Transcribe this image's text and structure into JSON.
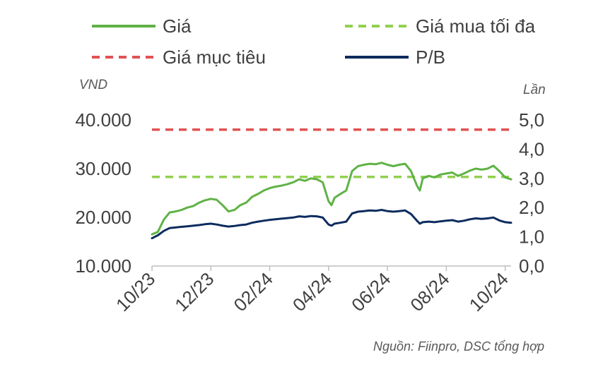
{
  "chart_data": {
    "type": "line",
    "title": "",
    "left_axis": {
      "unit": "VND",
      "ylim": [
        10000,
        40000
      ],
      "ticks": [
        "10.000",
        "20.000",
        "30.000",
        "40.000"
      ],
      "tick_values": [
        10000,
        20000,
        30000,
        40000
      ]
    },
    "right_axis": {
      "unit": "Lần",
      "ylim": [
        0,
        5
      ],
      "ticks": [
        "0,0",
        "1,0",
        "2,0",
        "3,0",
        "4,0",
        "5,0"
      ],
      "tick_values": [
        0,
        1,
        2,
        3,
        4,
        5
      ]
    },
    "x_axis": {
      "tick_labels": [
        "10/23",
        "12/23",
        "02/24",
        "04/24",
        "06/24",
        "08/24",
        "10/24"
      ],
      "tick_months": [
        0,
        2,
        4,
        6,
        8,
        10,
        12
      ],
      "range_months": [
        0,
        12.2
      ]
    },
    "legend": {
      "placement": "top",
      "items": [
        {
          "key": "price",
          "label": "Giá",
          "color": "#5fb246",
          "style": "solid"
        },
        {
          "key": "max_buy",
          "label": "Giá mua tối đa",
          "color": "#92d050",
          "style": "dashed"
        },
        {
          "key": "target",
          "label": "Giá mục tiêu",
          "color": "#e05252",
          "style": "dashed"
        },
        {
          "key": "pb",
          "label": "P/B",
          "color": "#0d2c5e",
          "style": "solid"
        }
      ]
    },
    "series": [
      {
        "name": "Giá",
        "axis": "left",
        "color": "#5fb246",
        "x": [
          0.0,
          0.2,
          0.4,
          0.6,
          0.8,
          1.0,
          1.2,
          1.4,
          1.6,
          1.8,
          2.0,
          2.2,
          2.4,
          2.6,
          2.8,
          3.0,
          3.2,
          3.4,
          3.6,
          3.8,
          4.0,
          4.2,
          4.4,
          4.6,
          4.8,
          5.0,
          5.2,
          5.4,
          5.6,
          5.8,
          6.0,
          6.1,
          6.2,
          6.4,
          6.6,
          6.8,
          7.0,
          7.2,
          7.4,
          7.6,
          7.8,
          8.0,
          8.2,
          8.4,
          8.6,
          8.8,
          9.0,
          9.1,
          9.2,
          9.4,
          9.6,
          9.8,
          10.0,
          10.2,
          10.4,
          10.6,
          10.8,
          11.0,
          11.2,
          11.4,
          11.6,
          11.8,
          12.0,
          12.2
        ],
        "y": [
          16500,
          17000,
          19500,
          21000,
          21200,
          21500,
          22000,
          22300,
          23000,
          23500,
          23800,
          23600,
          22500,
          21200,
          21500,
          22500,
          23000,
          24200,
          24800,
          25500,
          26000,
          26300,
          26500,
          26800,
          27200,
          27800,
          27500,
          28000,
          27800,
          27200,
          23300,
          22500,
          24000,
          24800,
          25500,
          29500,
          30500,
          30800,
          31000,
          30900,
          31200,
          30800,
          30500,
          30800,
          31000,
          29500,
          26500,
          25500,
          28000,
          28500,
          28200,
          28800,
          29000,
          29200,
          28500,
          29000,
          29600,
          30000,
          29800,
          30000,
          30600,
          29500,
          28200,
          27800
        ]
      },
      {
        "name": "Giá mua tối đa",
        "axis": "left",
        "color": "#92d050",
        "x": [
          0,
          12.2
        ],
        "y": [
          28300,
          28300
        ]
      },
      {
        "name": "Giá mục tiêu",
        "axis": "left",
        "color": "#e05252",
        "x": [
          0,
          12.2
        ],
        "y": [
          38000,
          38000
        ]
      },
      {
        "name": "P/B",
        "axis": "right",
        "color": "#0d2c5e",
        "x": [
          0.0,
          0.2,
          0.4,
          0.6,
          0.8,
          1.0,
          1.2,
          1.4,
          1.6,
          1.8,
          2.0,
          2.2,
          2.4,
          2.6,
          2.8,
          3.0,
          3.2,
          3.4,
          3.6,
          3.8,
          4.0,
          4.2,
          4.4,
          4.6,
          4.8,
          5.0,
          5.2,
          5.4,
          5.6,
          5.8,
          6.0,
          6.1,
          6.2,
          6.4,
          6.6,
          6.8,
          7.0,
          7.2,
          7.4,
          7.6,
          7.8,
          8.0,
          8.2,
          8.4,
          8.6,
          8.8,
          9.0,
          9.1,
          9.2,
          9.4,
          9.6,
          9.8,
          10.0,
          10.2,
          10.4,
          10.6,
          10.8,
          11.0,
          11.2,
          11.4,
          11.6,
          11.8,
          12.0,
          12.2
        ],
        "y": [
          0.95,
          1.05,
          1.2,
          1.3,
          1.32,
          1.34,
          1.36,
          1.38,
          1.4,
          1.43,
          1.45,
          1.42,
          1.38,
          1.35,
          1.37,
          1.4,
          1.42,
          1.48,
          1.52,
          1.55,
          1.58,
          1.6,
          1.62,
          1.64,
          1.66,
          1.7,
          1.68,
          1.71,
          1.7,
          1.66,
          1.42,
          1.38,
          1.45,
          1.48,
          1.52,
          1.8,
          1.86,
          1.88,
          1.9,
          1.89,
          1.92,
          1.88,
          1.86,
          1.88,
          1.9,
          1.78,
          1.55,
          1.45,
          1.5,
          1.52,
          1.5,
          1.53,
          1.55,
          1.57,
          1.52,
          1.55,
          1.6,
          1.63,
          1.61,
          1.63,
          1.66,
          1.56,
          1.5,
          1.48
        ]
      }
    ]
  },
  "source_note": "Nguồn: Fiinpro, DSC tổng hợp"
}
